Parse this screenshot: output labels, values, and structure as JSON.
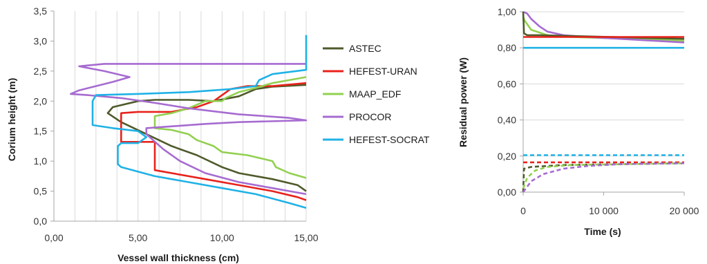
{
  "chart_data": [
    {
      "type": "line",
      "xlabel": "Vessel wall thickness (cm)",
      "ylabel": "Corium height (m)",
      "xlim": [
        0,
        15
      ],
      "ylim": [
        0,
        3.5
      ],
      "x_ticks": [
        "0,00",
        "5,00",
        "10,00",
        "15,00"
      ],
      "y_ticks": [
        "0,0",
        "0,5",
        "1,0",
        "1,5",
        "2,0",
        "2,5",
        "3,0",
        "3,5"
      ],
      "grid": "vertical",
      "legend": "right",
      "series": [
        {
          "name": "ASTEC",
          "color": "#4e5a2a",
          "points": [
            [
              15,
              0.5
            ],
            [
              14.5,
              0.6
            ],
            [
              13,
              0.7
            ],
            [
              11,
              0.8
            ],
            [
              10,
              0.9
            ],
            [
              8.5,
              1.1
            ],
            [
              7,
              1.25
            ],
            [
              5.5,
              1.45
            ],
            [
              4,
              1.65
            ],
            [
              3.2,
              1.8
            ],
            [
              3.5,
              1.9
            ],
            [
              5,
              2.0
            ],
            [
              6,
              2.02
            ],
            [
              8,
              2.02
            ],
            [
              9.5,
              2.0
            ],
            [
              11,
              2.08
            ],
            [
              12,
              2.2
            ],
            [
              13,
              2.24
            ],
            [
              15,
              2.27
            ]
          ]
        },
        {
          "name": "HEFEST-URAN",
          "color": "#e8221b",
          "points": [
            [
              15,
              0.35
            ],
            [
              14.5,
              0.4
            ],
            [
              13,
              0.5
            ],
            [
              11,
              0.6
            ],
            [
              9,
              0.7
            ],
            [
              6,
              0.85
            ],
            [
              6,
              1.32
            ],
            [
              4,
              1.32
            ],
            [
              4,
              1.8
            ],
            [
              5,
              1.82
            ],
            [
              6,
              1.82
            ],
            [
              7,
              1.82
            ],
            [
              8.5,
              1.9
            ],
            [
              9.5,
              2.0
            ],
            [
              10.5,
              2.2
            ],
            [
              11.5,
              2.25
            ],
            [
              13,
              2.25
            ],
            [
              15,
              2.3
            ]
          ]
        },
        {
          "name": "MAAP_EDF",
          "color": "#92d050",
          "points": [
            [
              15,
              0.72
            ],
            [
              14,
              0.8
            ],
            [
              13.2,
              0.9
            ],
            [
              13,
              1.0
            ],
            [
              11.5,
              1.1
            ],
            [
              10,
              1.15
            ],
            [
              9.5,
              1.25
            ],
            [
              8.5,
              1.35
            ],
            [
              8,
              1.45
            ],
            [
              7,
              1.52
            ],
            [
              6,
              1.55
            ],
            [
              6,
              1.75
            ],
            [
              7,
              1.8
            ],
            [
              8,
              1.88
            ],
            [
              9,
              2.0
            ],
            [
              10,
              2.0
            ],
            [
              10.2,
              2.05
            ],
            [
              11,
              2.15
            ],
            [
              12,
              2.22
            ],
            [
              13,
              2.3
            ],
            [
              14,
              2.35
            ],
            [
              15,
              2.4
            ]
          ]
        },
        {
          "name": "PROCOR",
          "color": "#a66bd0",
          "points": [
            [
              15,
              0.45
            ],
            [
              13,
              0.55
            ],
            [
              11,
              0.65
            ],
            [
              9,
              0.8
            ],
            [
              7.5,
              1.0
            ],
            [
              6.5,
              1.2
            ],
            [
              5.5,
              1.45
            ],
            [
              5.5,
              1.55
            ],
            [
              7,
              1.58
            ],
            [
              9,
              1.62
            ],
            [
              11,
              1.65
            ],
            [
              15,
              1.68
            ],
            [
              14,
              1.72
            ],
            [
              11,
              1.78
            ],
            [
              8,
              1.88
            ],
            [
              6,
              1.97
            ],
            [
              4,
              2.05
            ],
            [
              2,
              2.1
            ],
            [
              1,
              2.12
            ],
            [
              1.5,
              2.18
            ],
            [
              2.5,
              2.25
            ],
            [
              3.5,
              2.32
            ],
            [
              4.5,
              2.4
            ],
            [
              3,
              2.5
            ],
            [
              1.5,
              2.58
            ],
            [
              3,
              2.62
            ],
            [
              15,
              2.62
            ]
          ]
        },
        {
          "name": "HEFEST-SOCRAT",
          "color": "#1fb2e6",
          "points": [
            [
              15,
              0.22
            ],
            [
              14,
              0.3
            ],
            [
              12,
              0.45
            ],
            [
              10,
              0.55
            ],
            [
              8,
              0.65
            ],
            [
              6,
              0.75
            ],
            [
              4,
              0.9
            ],
            [
              3.8,
              0.95
            ],
            [
              3.8,
              1.25
            ],
            [
              4,
              1.3
            ],
            [
              5,
              1.3
            ],
            [
              5.5,
              1.4
            ],
            [
              5,
              1.5
            ],
            [
              3.5,
              1.55
            ],
            [
              2.3,
              1.6
            ],
            [
              2.3,
              2.0
            ],
            [
              2.5,
              2.1
            ],
            [
              5,
              2.12
            ],
            [
              8,
              2.15
            ],
            [
              10.5,
              2.2
            ],
            [
              12,
              2.25
            ],
            [
              12.2,
              2.35
            ],
            [
              13,
              2.45
            ],
            [
              15,
              2.52
            ],
            [
              15,
              3.1
            ]
          ]
        }
      ]
    },
    {
      "type": "line",
      "xlabel": "Time (s)",
      "ylabel": "Residual power (W)",
      "xlim": [
        0,
        20000
      ],
      "ylim": [
        0,
        1.0
      ],
      "x_ticks": [
        "0",
        "10 000",
        "20 000"
      ],
      "y_ticks": [
        "0,00",
        "0,20",
        "0,40",
        "0,60",
        "0,80",
        "1,00"
      ],
      "grid": "horizontal",
      "series": [
        {
          "color": "#92d050",
          "dashed": false,
          "points": [
            [
              0,
              0.97
            ],
            [
              200,
              0.95
            ],
            [
              1000,
              0.9
            ],
            [
              3000,
              0.87
            ],
            [
              6000,
              0.86
            ],
            [
              20000,
              0.84
            ]
          ]
        },
        {
          "color": "#a66bd0",
          "dashed": false,
          "points": [
            [
              0,
              1.0
            ],
            [
              500,
              0.99
            ],
            [
              1000,
              0.96
            ],
            [
              2000,
              0.92
            ],
            [
              3000,
              0.89
            ],
            [
              5000,
              0.87
            ],
            [
              8000,
              0.86
            ],
            [
              12000,
              0.85
            ],
            [
              16000,
              0.84
            ],
            [
              20000,
              0.83
            ]
          ]
        },
        {
          "color": "#4e5a2a",
          "dashed": false,
          "points": [
            [
              0,
              1.0
            ],
            [
              100,
              0.88
            ],
            [
              500,
              0.87
            ],
            [
              2000,
              0.87
            ],
            [
              20000,
              0.85
            ]
          ]
        },
        {
          "color": "#e8221b",
          "dashed": false,
          "points": [
            [
              0,
              0.86
            ],
            [
              20000,
              0.86
            ]
          ]
        },
        {
          "color": "#1fb2e6",
          "dashed": false,
          "points": [
            [
              0,
              0.8
            ],
            [
              20000,
              0.8
            ]
          ]
        },
        {
          "color": "#1fb2e6",
          "dashed": true,
          "points": [
            [
              0,
              0.205
            ],
            [
              20000,
              0.205
            ]
          ]
        },
        {
          "color": "#e8221b",
          "dashed": true,
          "points": [
            [
              0,
              0.165
            ],
            [
              20000,
              0.165
            ]
          ]
        },
        {
          "color": "#4e5a2a",
          "dashed": true,
          "points": [
            [
              0,
              0.0
            ],
            [
              100,
              0.13
            ],
            [
              1000,
              0.14
            ],
            [
              5000,
              0.15
            ],
            [
              20000,
              0.16
            ]
          ]
        },
        {
          "color": "#92d050",
          "dashed": true,
          "points": [
            [
              0,
              0.02
            ],
            [
              500,
              0.08
            ],
            [
              1500,
              0.12
            ],
            [
              3000,
              0.14
            ],
            [
              6000,
              0.15
            ],
            [
              20000,
              0.16
            ]
          ]
        },
        {
          "color": "#a66bd0",
          "dashed": true,
          "points": [
            [
              0,
              0.0
            ],
            [
              1000,
              0.06
            ],
            [
              2500,
              0.1
            ],
            [
              5000,
              0.13
            ],
            [
              8000,
              0.145
            ],
            [
              12000,
              0.155
            ],
            [
              20000,
              0.16
            ]
          ]
        }
      ]
    }
  ]
}
